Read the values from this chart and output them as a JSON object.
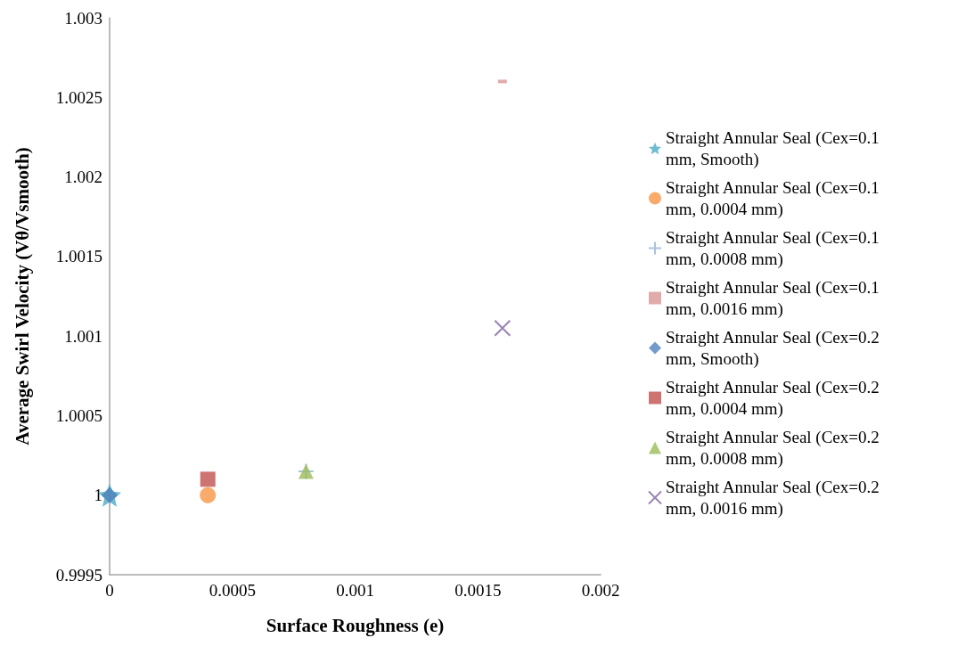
{
  "chart_data": {
    "type": "scatter",
    "xlabel": "Surface Roughness (e)",
    "ylabel": "Average Swirl Velocity (Vθ/Vsmooth)",
    "xlim": [
      0,
      0.002
    ],
    "xticks": [
      0,
      0.0005,
      0.001,
      0.0015,
      0.002
    ],
    "ylim": [
      0.9995,
      1.003
    ],
    "yticks": [
      0.9995,
      1,
      1.0005,
      1.001,
      1.0015,
      1.002,
      1.0025,
      1.003
    ],
    "grid": false,
    "legend": "right",
    "series": [
      {
        "name": "Straight Annular Seal (Cex=0.1 mm, Smooth)",
        "color": "#4bacc6",
        "marker": "star",
        "x": [
          0
        ],
        "values": [
          1
        ]
      },
      {
        "name": "Straight Annular Seal (Cex=0.1 mm, 0.0004 mm)",
        "color": "#f79646",
        "marker": "circle",
        "x": [
          0.0004
        ],
        "values": [
          1
        ]
      },
      {
        "name": "Straight Annular Seal (Cex=0.1 mm, 0.0008 mm)",
        "color": "#95b3d7",
        "marker": "plus",
        "x": [
          0.0008
        ],
        "values": [
          1.00015
        ]
      },
      {
        "name": "Straight Annular Seal (Cex=0.1 mm, 0.0016 mm)",
        "color": "#d99694",
        "x": [
          0.0016
        ],
        "values": [
          1.0026
        ]
      },
      {
        "name": "Straight Annular Seal (Cex=0.2 mm, Smooth)",
        "color": "#4f81bd",
        "marker": "diamond",
        "x": [
          0
        ],
        "values": [
          1
        ]
      },
      {
        "name": "Straight Annular Seal (Cex=0.2 mm, 0.0004 mm)",
        "color": "#c0504d",
        "marker": "square",
        "x": [
          0.0004
        ],
        "values": [
          1.0001
        ]
      },
      {
        "name": "Straight Annular Seal (Cex=0.2 mm, 0.0008 mm)",
        "color": "#9bbb59",
        "marker": "triangle",
        "x": [
          0.0008
        ],
        "values": [
          1.00015
        ]
      },
      {
        "name": "Straight Annular Seal (Cex=0.2 mm, 0.0016 mm)",
        "color": "#8064a2",
        "marker": "cross",
        "x": [
          0.0016
        ],
        "values": [
          1.00105
        ]
      }
    ]
  }
}
